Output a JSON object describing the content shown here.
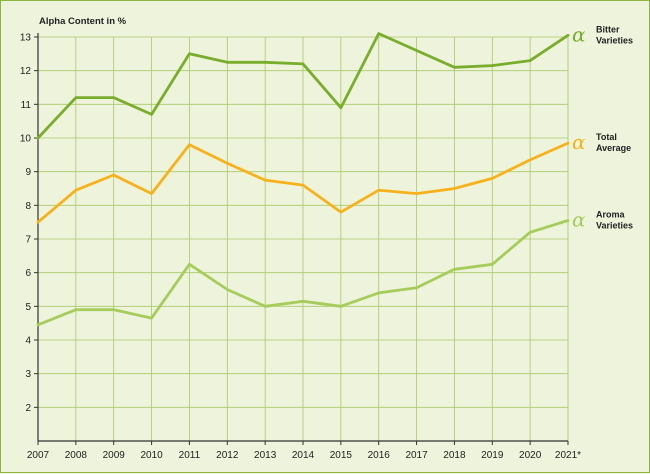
{
  "chart_data": {
    "type": "line",
    "ylabel": "Alpha Content in %",
    "x": [
      "2007",
      "2008",
      "2009",
      "2010",
      "2011",
      "2012",
      "2013",
      "2014",
      "2015",
      "2016",
      "2017",
      "2018",
      "2019",
      "2020",
      "2021*"
    ],
    "ylim": [
      1,
      13
    ],
    "yticks": [
      2,
      3,
      4,
      5,
      6,
      7,
      8,
      9,
      10,
      11,
      12,
      13
    ],
    "grid": true,
    "legend_position": "right",
    "series": [
      {
        "name": "Bitter Varieties",
        "color": "#79ad2c",
        "icon": "alpha-icon",
        "values": [
          10.0,
          11.2,
          11.2,
          10.7,
          12.5,
          12.25,
          12.25,
          12.2,
          10.9,
          13.1,
          12.6,
          12.1,
          12.15,
          12.3,
          13.05
        ]
      },
      {
        "name": "Total Average",
        "color": "#f7b21b",
        "icon": "alpha-icon",
        "values": [
          7.5,
          8.45,
          8.9,
          8.35,
          9.8,
          9.25,
          8.75,
          8.6,
          7.8,
          8.45,
          8.35,
          8.5,
          8.8,
          9.35,
          9.85
        ]
      },
      {
        "name": "Aroma Varieties",
        "color": "#a6cd5b",
        "icon": "alpha-icon",
        "values": [
          4.45,
          4.9,
          4.9,
          4.65,
          6.25,
          5.5,
          5.0,
          5.15,
          5.0,
          5.4,
          5.55,
          6.1,
          6.25,
          7.2,
          7.55
        ]
      }
    ],
    "legend_lines": [
      [
        "Bitter",
        "Varieties"
      ],
      [
        "Total",
        "Average"
      ],
      [
        "Aroma",
        "Varieties"
      ]
    ]
  }
}
